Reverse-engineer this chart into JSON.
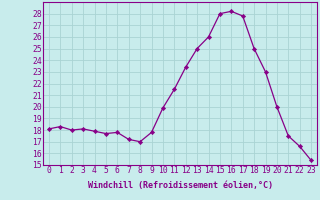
{
  "x": [
    0,
    1,
    2,
    3,
    4,
    5,
    6,
    7,
    8,
    9,
    10,
    11,
    12,
    13,
    14,
    15,
    16,
    17,
    18,
    19,
    20,
    21,
    22,
    23
  ],
  "y": [
    18.1,
    18.3,
    18.0,
    18.1,
    17.9,
    17.7,
    17.8,
    17.2,
    17.0,
    17.8,
    19.9,
    21.5,
    23.4,
    25.0,
    26.0,
    28.0,
    28.2,
    27.8,
    25.0,
    23.0,
    20.0,
    17.5,
    16.6,
    15.4
  ],
  "line_color": "#880088",
  "marker": "D",
  "marker_size": 2.2,
  "bg_color": "#c8ecec",
  "grid_color": "#aad4d4",
  "xlabel": "Windchill (Refroidissement éolien,°C)",
  "ylim": [
    15,
    29
  ],
  "xlim": [
    -0.5,
    23.5
  ],
  "yticks": [
    15,
    16,
    17,
    18,
    19,
    20,
    21,
    22,
    23,
    24,
    25,
    26,
    27,
    28
  ],
  "xticks": [
    0,
    1,
    2,
    3,
    4,
    5,
    6,
    7,
    8,
    9,
    10,
    11,
    12,
    13,
    14,
    15,
    16,
    17,
    18,
    19,
    20,
    21,
    22,
    23
  ],
  "label_fontsize": 6.0,
  "tick_fontsize": 5.8
}
